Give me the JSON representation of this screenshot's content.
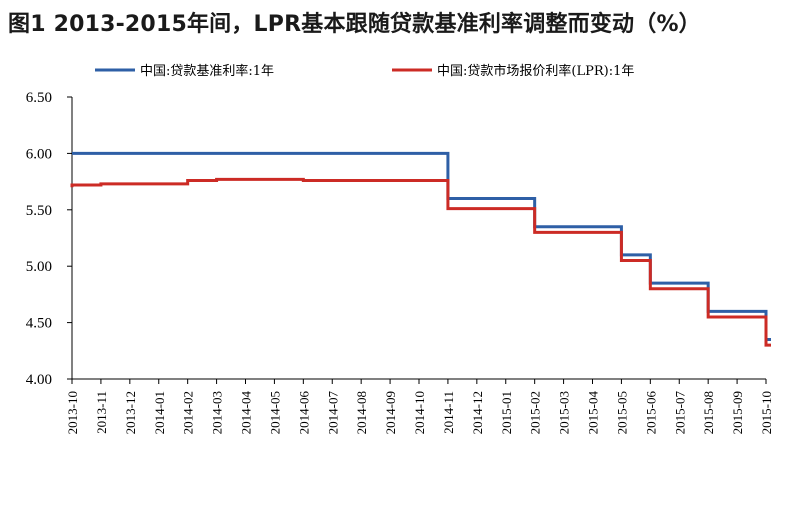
{
  "title": "图1  2013-2015年间，LPR基本跟随贷款基准利率调整而变动（%）",
  "colors": {
    "benchmark": "#2e5fa6",
    "lpr": "#cc2b25"
  },
  "chart_data": {
    "type": "line",
    "title": "图1  2013-2015年间，LPR基本跟随贷款基准利率调整而变动（%）",
    "xlabel": "",
    "ylabel": "",
    "x_start": "2013-10",
    "x_end": "2015-10",
    "categories": [
      "2013-10",
      "2013-11",
      "2013-12",
      "2014-01",
      "2014-02",
      "2014-03",
      "2014-04",
      "2014-05",
      "2014-06",
      "2014-07",
      "2014-08",
      "2014-09",
      "2014-10",
      "2014-11",
      "2014-12",
      "2015-01",
      "2015-02",
      "2015-03",
      "2015-04",
      "2015-05",
      "2015-06",
      "2015-07",
      "2015-08",
      "2015-09",
      "2015-10"
    ],
    "ylim": [
      4.0,
      6.5
    ],
    "yticks": [
      "6.50",
      "6.00",
      "5.50",
      "5.00",
      "4.50",
      "4.00"
    ],
    "legend_position": "top",
    "grid": false,
    "series": [
      {
        "name": "中国:贷款基准利率:1年",
        "color": "#2e5fa6",
        "step": true,
        "points": [
          [
            "2013-10",
            6.0
          ],
          [
            "2014-11",
            5.6
          ],
          [
            "2015-02",
            5.35
          ],
          [
            "2015-05",
            5.1
          ],
          [
            "2015-06",
            4.85
          ],
          [
            "2015-08",
            4.6
          ],
          [
            "2015-10",
            4.35
          ]
        ]
      },
      {
        "name": "中国:贷款市场报价利率(LPR):1年",
        "color": "#cc2b25",
        "step": true,
        "points": [
          [
            "2013-10",
            5.7
          ],
          [
            "2013-10",
            5.71
          ],
          [
            "2013-10",
            5.72
          ],
          [
            "2013-11",
            5.73
          ],
          [
            "2014-02",
            5.76
          ],
          [
            "2014-03",
            5.77
          ],
          [
            "2014-06",
            5.76
          ],
          [
            "2014-11",
            5.56
          ],
          [
            "2014-11",
            5.51
          ],
          [
            "2015-02",
            5.3
          ],
          [
            "2015-05",
            5.05
          ],
          [
            "2015-06",
            4.8
          ],
          [
            "2015-08",
            4.55
          ],
          [
            "2015-10",
            4.3
          ]
        ]
      }
    ]
  }
}
